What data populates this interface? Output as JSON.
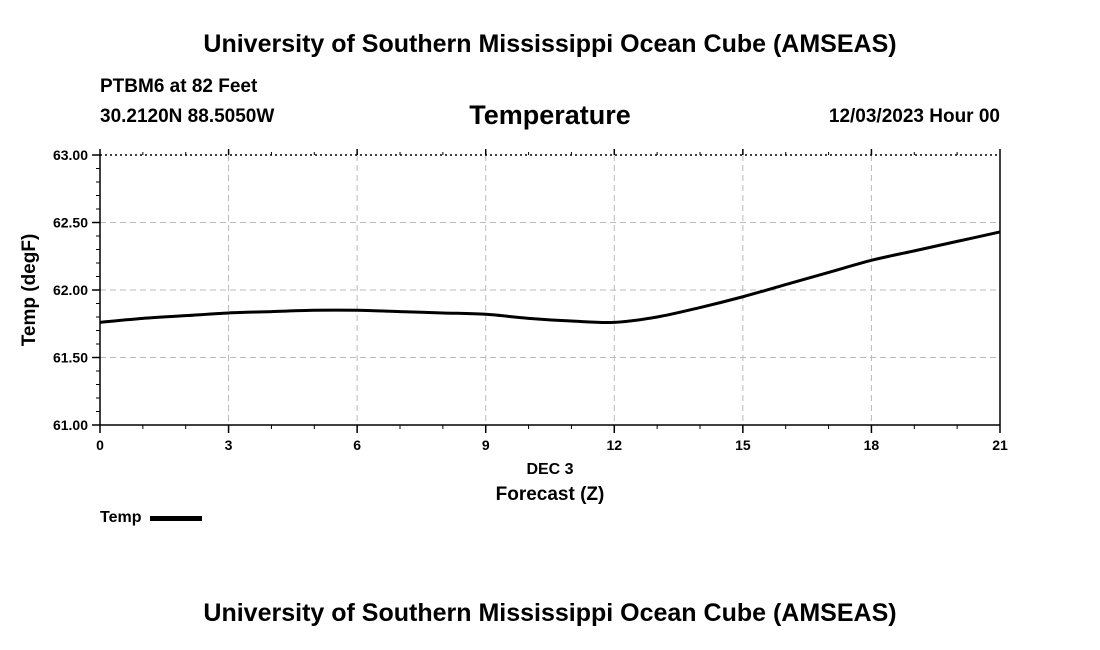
{
  "header": {
    "title_top": "University of Southern Mississippi Ocean Cube (AMSEAS)",
    "station": "PTBM6 at 82 Feet",
    "coords": "30.2120N  88.5050W",
    "chart_title": "Temperature",
    "datetime": "12/03/2023 Hour 00"
  },
  "footer": {
    "title_bottom": "University of Southern Mississippi Ocean Cube (AMSEAS)"
  },
  "legend": {
    "label": "Temp"
  },
  "chart_data": {
    "type": "line",
    "title": "Temperature",
    "xlabel": "Forecast (Z)",
    "xlabel_date": "DEC 3",
    "ylabel": "Temp (degF)",
    "xlim": [
      0,
      21
    ],
    "ylim": [
      61.0,
      63.0
    ],
    "xticks": [
      0,
      3,
      6,
      9,
      12,
      15,
      18,
      21
    ],
    "yticks": [
      61.0,
      61.5,
      62.0,
      62.5,
      63.0
    ],
    "ytick_labels": [
      "61.00",
      "61.50",
      "62.00",
      "62.50",
      "63.00"
    ],
    "grid": true,
    "series": [
      {
        "name": "Temp",
        "color": "#000000",
        "x": [
          0,
          1,
          2,
          3,
          4,
          5,
          6,
          7,
          8,
          9,
          10,
          11,
          12,
          13,
          14,
          15,
          16,
          17,
          18,
          19,
          20,
          21
        ],
        "y": [
          61.76,
          61.79,
          61.81,
          61.83,
          61.84,
          61.85,
          61.85,
          61.84,
          61.83,
          61.82,
          61.79,
          61.77,
          61.76,
          61.8,
          61.87,
          61.95,
          62.04,
          62.13,
          62.22,
          62.29,
          62.36,
          62.43
        ]
      }
    ]
  }
}
